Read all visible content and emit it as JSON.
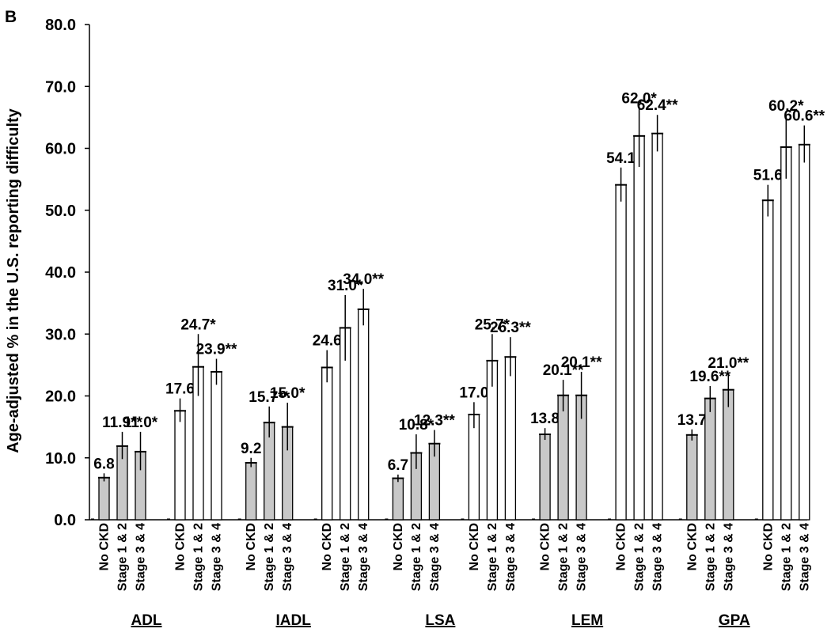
{
  "panel_label": "B",
  "chart_data": {
    "type": "bar",
    "title": "",
    "xlabel": "",
    "ylabel": "Age-adjusted % in the U.S. reporting difficulty",
    "ylim": [
      0,
      80
    ],
    "yticks": [
      "0.0",
      "10.0",
      "20.0",
      "30.0",
      "40.0",
      "50.0",
      "60.0",
      "70.0",
      "80.0"
    ],
    "grid": false,
    "categories": [
      "No CKD",
      "Stage 1 & 2",
      "Stage 3 & 4"
    ],
    "colors": {
      "filled": "#c8c8c8",
      "open": "#ffffff",
      "edge": "#000000"
    },
    "groups": [
      {
        "name": "ADL",
        "clusters": [
          {
            "fill": "filled",
            "bars": [
              {
                "value": 6.8,
                "label": "6.8",
                "err": [
                  6.2,
                  7.5
                ]
              },
              {
                "value": 11.9,
                "label": "11.9**",
                "err": [
                  9.8,
                  14.2
                ]
              },
              {
                "value": 11.0,
                "label": "11.0*",
                "err": [
                  8.0,
                  14.2
                ]
              }
            ]
          },
          {
            "fill": "open",
            "bars": [
              {
                "value": 17.6,
                "label": "17.6",
                "err": [
                  15.8,
                  19.6
                ]
              },
              {
                "value": 24.7,
                "label": "24.7*",
                "err": [
                  20.0,
                  30.0
                ]
              },
              {
                "value": 23.9,
                "label": "23.9**",
                "err": [
                  21.8,
                  26.0
                ]
              }
            ]
          }
        ]
      },
      {
        "name": "IADL",
        "clusters": [
          {
            "fill": "filled",
            "bars": [
              {
                "value": 9.2,
                "label": "9.2",
                "err": [
                  8.5,
                  10.0
                ]
              },
              {
                "value": 15.7,
                "label": "15.7**",
                "err": [
                  13.3,
                  18.3
                ]
              },
              {
                "value": 15.0,
                "label": "15.0*",
                "err": [
                  11.2,
                  18.9
                ]
              }
            ]
          },
          {
            "fill": "open",
            "bars": [
              {
                "value": 24.6,
                "label": "24.6",
                "err": [
                  22.2,
                  27.4
                ]
              },
              {
                "value": 31.0,
                "label": "31.0*",
                "err": [
                  25.7,
                  36.3
                ]
              },
              {
                "value": 34.0,
                "label": "34.0**",
                "err": [
                  31.4,
                  37.3
                ]
              }
            ]
          }
        ]
      },
      {
        "name": "LSA",
        "clusters": [
          {
            "fill": "filled",
            "bars": [
              {
                "value": 6.7,
                "label": "6.7",
                "err": [
                  6.1,
                  7.3
                ]
              },
              {
                "value": 10.8,
                "label": "10.8*",
                "err": [
                  8.2,
                  13.8
                ]
              },
              {
                "value": 12.3,
                "label": "12.3**",
                "err": [
                  10.2,
                  14.5
                ]
              }
            ]
          },
          {
            "fill": "open",
            "bars": [
              {
                "value": 17.0,
                "label": "17.0",
                "err": [
                  14.8,
                  19.0
                ]
              },
              {
                "value": 25.7,
                "label": "25.7*",
                "err": [
                  21.5,
                  30.0
                ]
              },
              {
                "value": 26.3,
                "label": "26.3**",
                "err": [
                  23.2,
                  29.5
                ]
              }
            ]
          }
        ]
      },
      {
        "name": "LEM",
        "clusters": [
          {
            "fill": "filled",
            "bars": [
              {
                "value": 13.8,
                "label": "13.8",
                "err": [
                  12.9,
                  14.8
                ]
              },
              {
                "value": 20.1,
                "label": "20.1**",
                "err": [
                  17.5,
                  22.6
                ]
              },
              {
                "value": 20.1,
                "label": "20.1**",
                "err": [
                  16.3,
                  23.9
                ]
              }
            ]
          },
          {
            "fill": "open",
            "bars": [
              {
                "value": 54.1,
                "label": "54.1",
                "err": [
                  51.4,
                  56.9
                ]
              },
              {
                "value": 62.0,
                "label": "62.0*",
                "err": [
                  57.0,
                  66.5
                ]
              },
              {
                "value": 62.4,
                "label": "62.4**",
                "err": [
                  59.5,
                  65.4
                ]
              }
            ]
          }
        ]
      },
      {
        "name": "GPA",
        "clusters": [
          {
            "fill": "filled",
            "bars": [
              {
                "value": 13.7,
                "label": "13.7",
                "err": [
                  12.8,
                  14.6
                ]
              },
              {
                "value": 19.6,
                "label": "19.6**",
                "err": [
                  17.4,
                  21.6
                ]
              },
              {
                "value": 21.0,
                "label": "21.0**",
                "err": [
                  18.2,
                  23.8
                ]
              }
            ]
          },
          {
            "fill": "open",
            "bars": [
              {
                "value": 51.6,
                "label": "51.6",
                "err": [
                  49.0,
                  54.1
                ]
              },
              {
                "value": 60.2,
                "label": "60.2*",
                "err": [
                  55.1,
                  65.3
                ]
              },
              {
                "value": 60.6,
                "label": "60.6**",
                "err": [
                  57.7,
                  63.7
                ]
              }
            ]
          }
        ]
      }
    ]
  }
}
